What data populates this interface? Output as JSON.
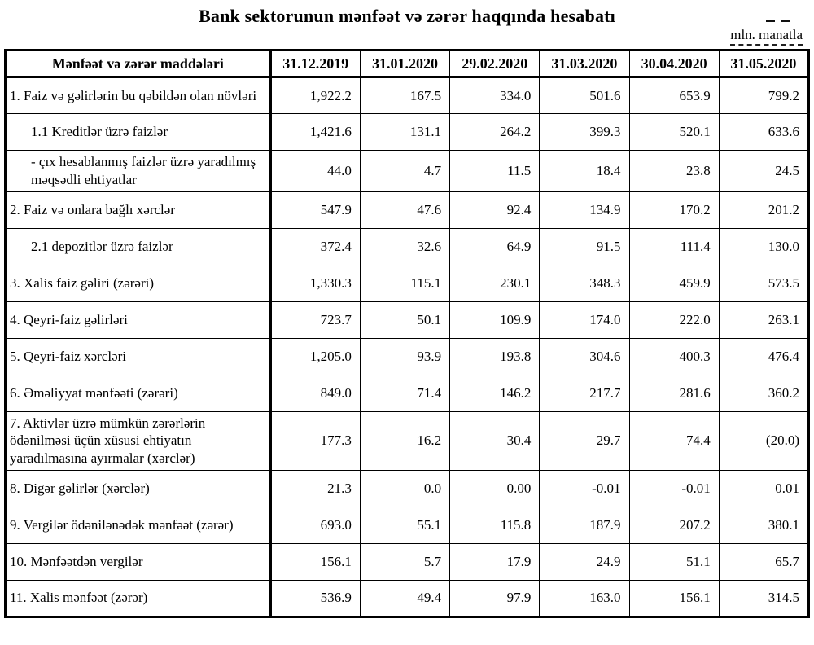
{
  "title": "Bank sektorunun mənfəət və zərər haqqında hesabatı",
  "unit_note": "mln. manatla",
  "colors": {
    "background": "#ffffff",
    "text": "#000000",
    "border": "#000000"
  },
  "table": {
    "header": {
      "label": "Mənfəət və zərər maddələri",
      "dates": [
        "31.12.2019",
        "31.01.2020",
        "29.02.2020",
        "31.03.2020",
        "30.04.2020",
        "31.05.2020"
      ]
    },
    "rows": [
      {
        "label": "1. Faiz və gəlirlərin bu qəbildən olan növləri",
        "indent": 0,
        "values": [
          "1,922.2",
          "167.5",
          "334.0",
          "501.6",
          "653.9",
          "799.2"
        ]
      },
      {
        "label": "1.1 Kreditlər üzrə faizlər",
        "indent": 1,
        "values": [
          "1,421.6",
          "131.1",
          "264.2",
          "399.3",
          "520.1",
          "633.6"
        ]
      },
      {
        "label": "-  çıx hesablanmış faizlər üzrə yaradılmış məqsədli ehtiyatlar",
        "indent": 1,
        "values": [
          "44.0",
          "4.7",
          "11.5",
          "18.4",
          "23.8",
          "24.5"
        ]
      },
      {
        "label": "2. Faiz və onlara bağlı xərclər",
        "indent": 0,
        "values": [
          "547.9",
          "47.6",
          "92.4",
          "134.9",
          "170.2",
          "201.2"
        ]
      },
      {
        "label": "2.1 depozitlər üzrə faizlər",
        "indent": 1,
        "values": [
          "372.4",
          "32.6",
          "64.9",
          "91.5",
          "111.4",
          "130.0"
        ]
      },
      {
        "label": "3. Xalis faiz gəliri (zərəri)",
        "indent": 0,
        "values": [
          "1,330.3",
          "115.1",
          "230.1",
          "348.3",
          "459.9",
          "573.5"
        ]
      },
      {
        "label": "4. Qeyri-faiz gəlirləri",
        "indent": 0,
        "values": [
          "723.7",
          "50.1",
          "109.9",
          "174.0",
          "222.0",
          "263.1"
        ]
      },
      {
        "label": "5. Qeyri-faiz xərcləri",
        "indent": 0,
        "values": [
          "1,205.0",
          "93.9",
          "193.8",
          "304.6",
          "400.3",
          "476.4"
        ]
      },
      {
        "label": "6. Əməliyyat mənfəəti (zərəri)",
        "indent": 0,
        "values": [
          "849.0",
          "71.4",
          "146.2",
          "217.7",
          "281.6",
          "360.2"
        ]
      },
      {
        "label": "7. Aktivlər üzrə mümkün zərərlərin ödənilməsi üçün xüsusi ehtiyatın yaradılmasına ayırmalar (xərclər)",
        "indent": 0,
        "values": [
          "177.3",
          "16.2",
          "30.4",
          "29.7",
          "74.4",
          "(20.0)"
        ]
      },
      {
        "label": "8. Digər gəlirlər (xərclər)",
        "indent": 0,
        "values": [
          "21.3",
          "0.0",
          "0.00",
          "-0.01",
          "-0.01",
          "0.01"
        ]
      },
      {
        "label": "9. Vergilər ödənilənədək mənfəət (zərər)",
        "indent": 0,
        "values": [
          "693.0",
          "55.1",
          "115.8",
          "187.9",
          "207.2",
          "380.1"
        ]
      },
      {
        "label": "10. Mənfəətdən vergilər",
        "indent": 0,
        "values": [
          "156.1",
          "5.7",
          "17.9",
          "24.9",
          "51.1",
          "65.7"
        ]
      },
      {
        "label": "11. Xalis mənfəət (zərər)",
        "indent": 0,
        "values": [
          "536.9",
          "49.4",
          "97.9",
          "163.0",
          "156.1",
          "314.5"
        ]
      }
    ]
  }
}
